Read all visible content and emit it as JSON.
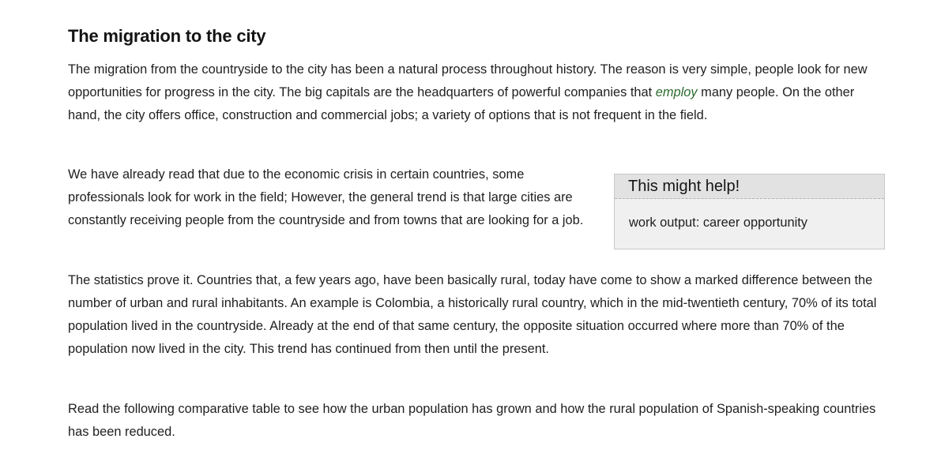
{
  "article": {
    "title": "The migration to the city",
    "paragraph1": {
      "before": "The migration from the countryside to the city has been a natural process throughout history. The reason is very simple, people look for new opportunities for progress in the city. The big capitals are the headquarters of powerful companies that ",
      "highlight": "employ",
      "after": " many people. On the other hand, the city offers office, construction and commercial jobs; a variety of options that is not frequent in the field."
    },
    "paragraph2": "We have already read that due to the economic crisis in certain countries, some professionals look for work in the field; However, the general trend is that large cities are constantly receiving people from the countryside and from towns that are looking for a job.",
    "paragraph3": "The statistics prove it. Countries that, a few years ago, have been basically rural, today have come to show a marked difference between the number of urban and rural inhabitants. An example is Colombia, a historically rural country, which in the mid-twentieth century, 70% of its total population lived in the countryside. Already at the end of that same century, the opposite situation occurred where more than 70% of the population now lived in the city. This trend has continued from then until the present.",
    "paragraph4": "Read the following comparative table to see how the urban population has grown and how the rural population of Spanish-speaking countries has been reduced."
  },
  "help_box": {
    "title": "This might help!",
    "term": "work output:",
    "definition": " career opportunity"
  },
  "colors": {
    "highlight": "#2c6b2f",
    "help_box_background": "#f0f0f0",
    "help_box_header": "#e2e2e2"
  }
}
